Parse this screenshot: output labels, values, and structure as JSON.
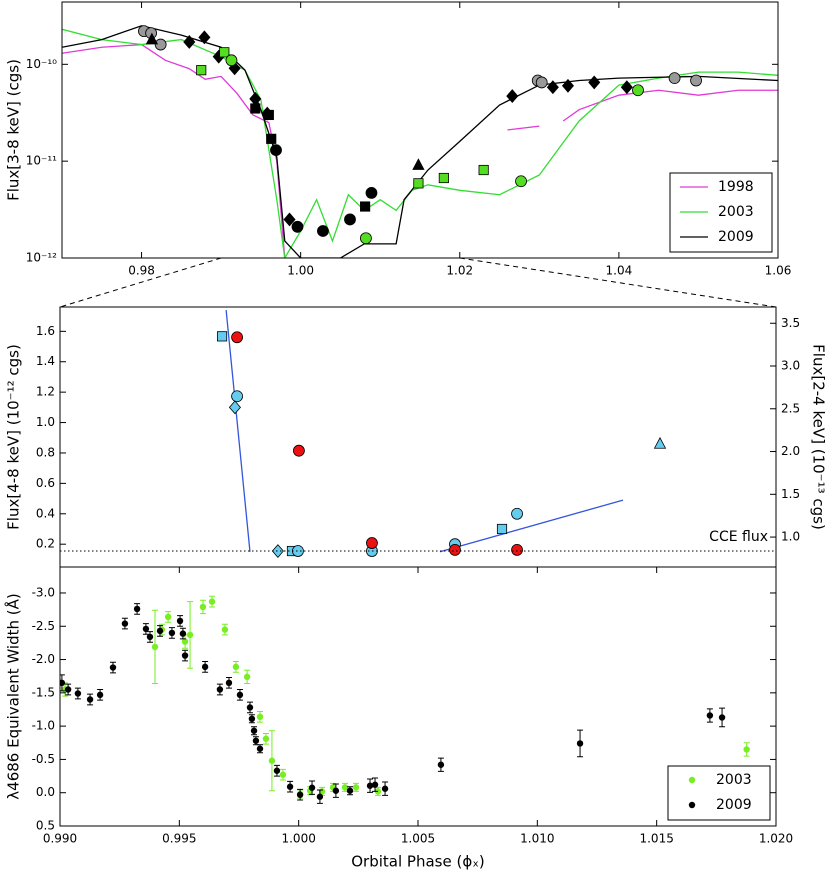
{
  "chart_data": [
    {
      "type": "line",
      "ylabel": "Flux[3-8 keV] (cgs)",
      "log_y": true,
      "legend": "lower right",
      "xlim": [
        0.97,
        1.06
      ],
      "xticks": [
        0.98,
        {
          "value": 1.0,
          "label": "1.00"
        },
        1.02,
        1.04,
        1.06
      ],
      "ylim": [
        1e-12,
        4.4e-10
      ],
      "yticks": [
        {
          "value": 1e-12,
          "label": "10⁻¹²"
        },
        {
          "value": 1e-11,
          "label": "10⁻¹¹"
        },
        {
          "value": 1e-10,
          "label": "10⁻¹⁰"
        }
      ],
      "series": [
        {
          "name": "1998",
          "color": "#e03ad8",
          "x": [
            0.97,
            0.975,
            0.98,
            0.983,
            0.986,
            0.988,
            0.99,
            0.992,
            0.994,
            0.996,
            0.997,
            0.998,
            1.01,
            1.026,
            1.03,
            1.031,
            1.033,
            1.035,
            1.04,
            1.045,
            1.05,
            1.055,
            1.06
          ],
          "values": [
            1.3e-10,
            1.5e-10,
            1.6e-10,
            1.1e-10,
            9e-11,
            7e-11,
            7.5e-11,
            5e-11,
            3e-11,
            2.5e-11,
            1e-11,
            1e-12,
            null,
            2.1e-11,
            2.3e-11,
            null,
            2.6e-11,
            3.4e-11,
            4.8e-11,
            5.4e-11,
            4.8e-11,
            5.4e-11,
            5.4e-11
          ]
        },
        {
          "name": "2003",
          "color": "#33dd33",
          "x": [
            0.97,
            0.975,
            0.98,
            0.985,
            0.99,
            0.993,
            0.995,
            0.997,
            0.998,
            1.0,
            1.002,
            1.004,
            1.006,
            1.008,
            1.01,
            1.012,
            1.014,
            1.016,
            1.02,
            1.025,
            1.03,
            1.035,
            1.04,
            1.045,
            1.05,
            1.055,
            1.06
          ],
          "values": [
            2.3e-10,
            1.8e-10,
            1.6e-10,
            1.8e-10,
            1.2e-10,
            8.7e-11,
            4.3e-11,
            4e-12,
            1e-12,
            1.9e-12,
            4e-12,
            1.5e-12,
            4.5e-12,
            3.1e-12,
            4e-12,
            3.1e-12,
            5e-12,
            5.7e-12,
            5e-12,
            4.5e-12,
            7.2e-12,
            2.6e-11,
            6.1e-11,
            7.2e-11,
            8.3e-11,
            8.3e-11,
            7.7e-11
          ]
        },
        {
          "name": "2009",
          "color": "#000000",
          "x": [
            0.97,
            0.975,
            0.98,
            0.985,
            0.99,
            0.993,
            0.995,
            0.997,
            0.998,
            1.0,
            1.005,
            1.008,
            1.012,
            1.013,
            1.016,
            1.02,
            1.025,
            1.03,
            1.035,
            1.04,
            1.05,
            1.06
          ],
          "values": [
            1.5e-10,
            1.8e-10,
            2.5e-10,
            2e-10,
            1.5e-10,
            8.7e-11,
            3.4e-11,
            1.1e-11,
            1.5e-12,
            1e-12,
            1e-12,
            1.4e-12,
            1.4e-12,
            4e-12,
            8.1e-12,
            1.6e-11,
            3.8e-11,
            6.1e-11,
            6.8e-11,
            7.2e-11,
            7.5e-11,
            6.8e-11
          ]
        },
        {
          "marker": "circle",
          "color": "#999999",
          "x": [
            0.9803,
            0.9812,
            0.9824,
            1.0298,
            1.0303,
            1.047,
            1.0497
          ],
          "values": [
            2.2e-10,
            2.1e-10,
            1.6e-10,
            6.8e-11,
            6.5e-11,
            7.2e-11,
            6.8e-11
          ]
        },
        {
          "marker": "diamond",
          "color": "#000000",
          "x": [
            0.986,
            0.9879,
            0.9897,
            0.9917,
            0.9943,
            0.9958,
            0.9986,
            1.0266,
            1.0317,
            1.0336,
            1.0369,
            1.041
          ],
          "values": [
            1.7e-10,
            1.9e-10,
            1.2e-10,
            9.1e-11,
            4.4e-11,
            3.1e-11,
            2.5e-12,
            4.7e-11,
            5.8e-11,
            6e-11,
            6.5e-11,
            5.8e-11
          ]
        },
        {
          "marker": "square",
          "color": "#000000",
          "x": [
            0.9943,
            0.996,
            0.9963,
            1.0081
          ],
          "values": [
            3.5e-11,
            3e-11,
            1.7e-11,
            3.4e-12
          ]
        },
        {
          "marker": "circle",
          "color": "#000000",
          "x": [
            0.9969,
            0.9996,
            1.0028,
            1.0062,
            1.0089
          ],
          "values": [
            1.3e-11,
            2.1e-12,
            1.9e-12,
            2.5e-12,
            4.7e-12
          ]
        },
        {
          "marker": "triangle",
          "color": "#000000",
          "x": [
            0.9813,
            1.0148
          ],
          "values": [
            1.8e-10,
            9.1e-12
          ]
        },
        {
          "marker": "square",
          "color": "#55dd22",
          "x": [
            0.9875,
            0.9904,
            1.0148,
            1.018,
            1.023
          ],
          "values": [
            8.7e-11,
            1.33e-10,
            5.9e-12,
            6.7e-12,
            8.1e-12
          ]
        },
        {
          "marker": "circle",
          "color": "#55dd22",
          "x": [
            0.9913,
            1.0082,
            1.0277,
            1.0424
          ],
          "values": [
            1.1e-10,
            1.6e-12,
            6.2e-12,
            5.4e-11
          ]
        }
      ]
    },
    {
      "type": "scatter",
      "ylabel": "Flux[4-8 keV] (10⁻¹² cgs)",
      "y2label": "Flux[2-4 keV] (10⁻¹³ cgs)",
      "ylabel_color": "#3355dd",
      "y2label_color": "#dd1111",
      "xlim": [
        0.99,
        1.02
      ],
      "ylim": [
        0.05,
        1.76
      ],
      "yticks": [
        0.2,
        0.4,
        0.6,
        0.8,
        {
          "value": 1.0,
          "label": "1.0"
        },
        1.2,
        1.4,
        1.6
      ],
      "y2lim": [
        0.65,
        3.69
      ],
      "y2ticks": [
        {
          "value": 1.0,
          "label": "1.0"
        },
        1.5,
        {
          "value": 2.0,
          "label": "2.0"
        },
        2.5,
        {
          "value": 3.0,
          "label": "3.0"
        },
        3.5
      ],
      "annotation": "CCE flux",
      "cce_level": 0.155,
      "series": [
        {
          "color": "#3355dd",
          "x": [
            0.99696,
            0.99796
          ],
          "values": [
            1.74,
            0.15
          ]
        },
        {
          "color": "#3355dd",
          "x": [
            1.00592,
            1.01359
          ],
          "values": [
            0.15,
            0.49
          ]
        },
        {
          "marker": "square",
          "color": "#66ccee",
          "x": [
            0.99679,
            0.99972,
            1.00852
          ],
          "values": [
            1.567,
            0.155,
            0.3
          ]
        },
        {
          "marker": "circle",
          "color": "#66ccee",
          "x": [
            0.99742,
            0.99997,
            1.00307,
            1.00655,
            1.00915
          ],
          "values": [
            1.173,
            0.155,
            0.155,
            0.2,
            0.4
          ]
        },
        {
          "marker": "diamond",
          "color": "#66ccee",
          "x": [
            0.99733,
            0.99913
          ],
          "values": [
            1.1,
            0.155
          ]
        },
        {
          "marker": "triangle",
          "color": "#66ccee",
          "x": [
            1.01514
          ],
          "values": [
            0.86
          ]
        },
        {
          "marker": "circle",
          "color": "#ee1111",
          "axis": "y2",
          "x": [
            0.99742,
            1.00001,
            1.00307,
            1.00655,
            1.00915
          ],
          "values": [
            3.336,
            2.01,
            0.93,
            0.85,
            0.85
          ]
        }
      ]
    },
    {
      "type": "errorbar",
      "xlabel": "Orbital Phase (ϕₓ)",
      "ylabel": "λ4686 Equivalent Width (Å)",
      "legend": "lower right",
      "xlim": [
        0.99,
        1.02
      ],
      "xticks": [
        {
          "value": 0.99,
          "label": "0.990"
        },
        0.995,
        {
          "value": 1.0,
          "label": "1.000"
        },
        1.005,
        {
          "value": 1.01,
          "label": "1.010"
        },
        1.015,
        {
          "value": 1.02,
          "label": "1.020"
        }
      ],
      "ylim": [
        0.5,
        -3.39
      ],
      "yticks": [
        {
          "value": -3.0,
          "label": "-3.0"
        },
        -2.5,
        {
          "value": -2.0,
          "label": "-2.0"
        },
        -1.5,
        {
          "value": -1.0,
          "label": "-1.0"
        },
        -0.5,
        {
          "value": 0.0,
          "label": "0.0"
        },
        0.5
      ],
      "series": [
        {
          "name": "2003",
          "color": "#77ee22",
          "x": [
            0.99021,
            0.99398,
            0.99427,
            0.99453,
            0.99524,
            0.99545,
            0.99599,
            0.99637,
            0.99691,
            0.99737,
            0.99784,
            0.99838,
            0.99863,
            0.99888,
            0.99934,
            1.00006,
            1.00048,
            1.00098,
            1.00144,
            1.00194,
            1.0024,
            1.00332,
            1.01877
          ],
          "values": [
            -1.55,
            -2.19,
            -2.45,
            -2.64,
            -2.27,
            -2.37,
            -2.79,
            -2.87,
            -2.45,
            -1.89,
            -1.74,
            -1.14,
            -0.81,
            -0.48,
            -0.27,
            0.02,
            -0.03,
            -0.02,
            -0.08,
            -0.08,
            -0.08,
            -0.02,
            -0.65
          ],
          "errors": [
            0.1,
            0.55,
            0.08,
            0.08,
            0.1,
            0.5,
            0.1,
            0.08,
            0.08,
            0.08,
            0.1,
            0.08,
            0.08,
            0.45,
            0.08,
            0.06,
            0.06,
            0.06,
            0.06,
            0.06,
            0.06,
            0.06,
            0.1
          ]
        },
        {
          "name": "2009",
          "color": "#000000",
          "x": [
            0.99008,
            0.99034,
            0.99075,
            0.99126,
            0.99168,
            0.99222,
            0.99272,
            0.99323,
            0.9936,
            0.99377,
            0.99419,
            0.99469,
            0.99503,
            0.99515,
            0.99524,
            0.99608,
            0.9967,
            0.99708,
            0.99754,
            0.99796,
            0.99804,
            0.99813,
            0.99821,
            0.99838,
            0.99909,
            0.99964,
            1.00006,
            1.00056,
            1.00089,
            1.00156,
            1.00215,
            1.00299,
            1.0032,
            1.00362,
            1.00596,
            1.01179,
            1.01723,
            1.01774
          ],
          "values": [
            -1.65,
            -1.55,
            -1.49,
            -1.4,
            -1.47,
            -1.88,
            -2.54,
            -2.76,
            -2.46,
            -2.34,
            -2.43,
            -2.4,
            -2.58,
            -2.39,
            -2.06,
            -1.89,
            -1.55,
            -1.65,
            -1.47,
            -1.28,
            -1.11,
            -0.93,
            -0.78,
            -0.66,
            -0.33,
            -0.09,
            0.03,
            -0.075,
            0.06,
            -0.03,
            -0.03,
            -0.105,
            -0.12,
            -0.06,
            -0.42,
            -0.74,
            -1.16,
            -1.13
          ],
          "errors": [
            0.12,
            0.08,
            0.08,
            0.08,
            0.08,
            0.08,
            0.08,
            0.08,
            0.08,
            0.08,
            0.08,
            0.08,
            0.08,
            0.08,
            0.08,
            0.08,
            0.08,
            0.08,
            0.08,
            0.08,
            0.06,
            0.06,
            0.06,
            0.06,
            0.08,
            0.08,
            0.08,
            0.1,
            0.1,
            0.1,
            0.06,
            0.1,
            0.1,
            0.1,
            0.1,
            0.2,
            0.1,
            0.14
          ]
        }
      ]
    }
  ]
}
